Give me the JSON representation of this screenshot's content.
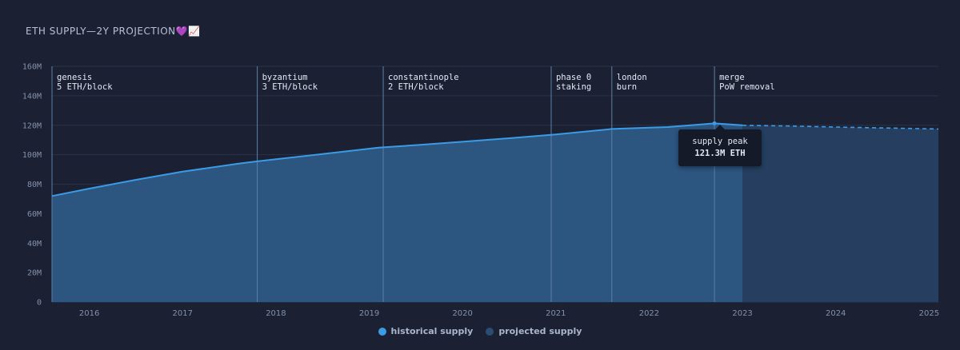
{
  "colors": {
    "background": "#1b2133",
    "historical": "#3b9be6",
    "historical_fill": "#2c5580",
    "projected_fill": "#263f61",
    "grid": "#2a3248",
    "event_line": "#5d7fa8"
  },
  "chart_data": {
    "type": "area",
    "title": "ETH SUPPLY—2Y PROJECTION",
    "title_emoji": "💜📈",
    "xlabel": "",
    "ylabel": "",
    "xlim": [
      2015.6,
      2025.1
    ],
    "ylim": [
      0,
      160
    ],
    "y_ticks": [
      0,
      20,
      40,
      60,
      80,
      100,
      120,
      140,
      160
    ],
    "y_tick_labels": [
      "0",
      "20M",
      "40M",
      "60M",
      "80M",
      "100M",
      "120M",
      "140M",
      "160M"
    ],
    "x_ticks": [
      2016,
      2017,
      2018,
      2019,
      2020,
      2021,
      2022,
      2023,
      2024,
      2025
    ],
    "x_tick_labels": [
      "2016",
      "2017",
      "2018",
      "2019",
      "2020",
      "2021",
      "2022",
      "2023",
      "2024",
      "2025"
    ],
    "grid": true,
    "series": [
      {
        "name": "historical supply",
        "values": [
          [
            2015.6,
            72
          ],
          [
            2016.0,
            77
          ],
          [
            2016.5,
            83
          ],
          [
            2017.0,
            88.5
          ],
          [
            2017.6,
            94
          ],
          [
            2017.8,
            95.5
          ],
          [
            2018.5,
            100.5
          ],
          [
            2019.1,
            104.8
          ],
          [
            2019.5,
            106.5
          ],
          [
            2020.0,
            108.8
          ],
          [
            2020.5,
            111.2
          ],
          [
            2021.0,
            113.8
          ],
          [
            2021.6,
            117.5
          ],
          [
            2022.0,
            118.4
          ],
          [
            2022.2,
            118.8
          ],
          [
            2022.7,
            121.3
          ],
          [
            2023.0,
            120
          ]
        ]
      },
      {
        "name": "projected supply",
        "values": [
          [
            2023.0,
            120
          ],
          [
            2023.5,
            119.5
          ],
          [
            2024.0,
            118.8
          ],
          [
            2024.5,
            118.2
          ],
          [
            2025.1,
            117.5
          ]
        ]
      }
    ],
    "events": [
      {
        "x": 2015.6,
        "line1": "genesis",
        "line2": "5 ETH/block"
      },
      {
        "x": 2017.8,
        "line1": "byzantium",
        "line2": "3 ETH/block"
      },
      {
        "x": 2019.15,
        "line1": "constantinople",
        "line2": "2 ETH/block"
      },
      {
        "x": 2020.95,
        "line1": "phase 0",
        "line2": "staking"
      },
      {
        "x": 2021.6,
        "line1": "london",
        "line2": "burn"
      },
      {
        "x": 2022.7,
        "line1": "merge",
        "line2": "PoW removal"
      }
    ],
    "tooltip": {
      "label": "supply peak",
      "value": "121.3M ETH"
    },
    "legend": {
      "placement": "bottom",
      "items": [
        "historical supply",
        "projected supply"
      ]
    }
  }
}
